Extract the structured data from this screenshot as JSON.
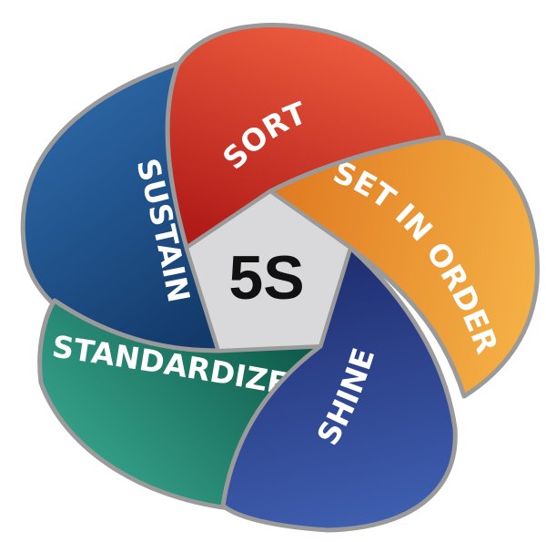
{
  "center": {
    "label": "5S"
  },
  "petals": [
    {
      "id": "sort",
      "label": "SORT",
      "color_light": "#f06040",
      "color_dark": "#b01a18"
    },
    {
      "id": "set-in-order",
      "label": "SET IN ORDER",
      "color_light": "#f4b045",
      "color_dark": "#e07a22"
    },
    {
      "id": "shine",
      "label": "SHINE",
      "color_light": "#3f5fb0",
      "color_dark": "#1e2c6e"
    },
    {
      "id": "standardize",
      "label": "STANDARDIZE",
      "color_light": "#3fb39a",
      "color_dark": "#0f5a4a"
    },
    {
      "id": "sustain",
      "label": "SUSTAIN",
      "color_light": "#2e6aaa",
      "color_dark": "#133a6a"
    }
  ],
  "colors": {
    "center_fill": "#d9d9db",
    "outline": "#9a9a9a",
    "label_text": "#ffffff",
    "center_text": "#111111"
  }
}
